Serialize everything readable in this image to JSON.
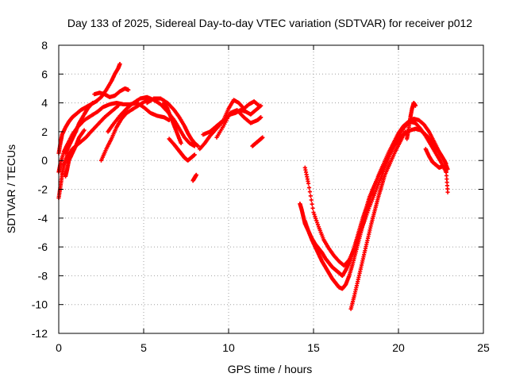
{
  "chart_data": {
    "type": "scatter",
    "title": "Day 133 of 2025, Sidereal Day-to-day VTEC variation (SDTVAR) for receiver p012",
    "xlabel": "GPS time / hours",
    "ylabel": "SDTVAR / TECUs",
    "xlim": [
      0,
      25
    ],
    "ylim": [
      -12,
      8
    ],
    "x_ticks": [
      "0",
      "5",
      "10",
      "15",
      "20",
      "25"
    ],
    "y_ticks": [
      "8",
      "6",
      "4",
      "2",
      "0",
      "-2",
      "-4",
      "-6",
      "-8",
      "-10",
      "-12"
    ],
    "grid": true,
    "marker": "+",
    "series_color": "#ff0000",
    "series": [
      {
        "x": [
          0.0,
          0.1,
          0.2,
          0.4,
          0.6,
          0.8,
          1.0,
          1.3,
          1.6,
          1.9,
          2.2,
          2.5,
          2.8,
          3.1,
          3.3,
          3.5,
          3.6
        ],
        "y": [
          0.5,
          1.2,
          1.8,
          2.3,
          2.7,
          3.0,
          3.2,
          3.5,
          3.7,
          3.9,
          4.1,
          4.4,
          4.9,
          5.5,
          6.0,
          6.4,
          6.7
        ]
      },
      {
        "x": [
          0.0,
          0.1,
          0.3,
          0.5,
          0.8,
          1.1,
          1.5,
          1.9,
          2.3,
          2.6,
          3.0,
          3.4,
          3.8,
          4.2,
          4.6,
          5.0,
          5.4,
          5.8,
          6.2,
          6.5
        ],
        "y": [
          -0.8,
          -0.2,
          0.6,
          1.1,
          1.8,
          2.3,
          2.8,
          3.1,
          3.4,
          3.7,
          3.9,
          4.0,
          3.9,
          3.9,
          4.0,
          3.7,
          3.3,
          3.1,
          3.0,
          2.8
        ]
      },
      {
        "x": [
          0.0,
          0.1,
          0.2,
          0.3,
          0.5,
          0.8,
          1.2,
          1.6,
          1.9,
          2.3,
          2.7,
          3.1,
          3.5
        ],
        "y": [
          -2.6,
          -1.8,
          -1.0,
          -0.3,
          0.3,
          0.8,
          1.2,
          1.6,
          2.0,
          2.5,
          3.0,
          3.4,
          3.8
        ]
      },
      {
        "x": [
          0.4,
          0.5,
          0.6,
          0.8,
          1.0,
          1.2,
          1.5
        ],
        "y": [
          -1.1,
          -0.6,
          0.0,
          0.5,
          1.0,
          1.6,
          2.1
        ]
      },
      {
        "x": [
          0.4,
          0.6,
          0.8,
          1.0,
          1.2,
          1.5,
          1.7,
          2.0
        ],
        "y": [
          0.5,
          1.0,
          1.5,
          2.0,
          2.6,
          3.2,
          3.6,
          4.0
        ]
      },
      {
        "x": [
          2.1,
          2.4,
          2.7,
          3.0,
          3.3,
          3.6,
          3.9,
          4.1
        ],
        "y": [
          4.6,
          4.7,
          4.6,
          4.4,
          4.5,
          4.8,
          5.0,
          4.9
        ]
      },
      {
        "x": [
          2.5,
          2.8,
          3.1,
          3.4,
          3.7,
          4.0,
          4.4,
          4.8,
          5.2
        ],
        "y": [
          0.0,
          0.8,
          1.5,
          2.3,
          2.9,
          3.3,
          3.6,
          3.9,
          4.2
        ]
      },
      {
        "x": [
          2.9,
          3.2,
          3.6,
          4.0,
          4.4,
          4.8,
          5.2,
          5.6,
          6.0,
          6.4,
          6.8,
          7.1,
          7.4,
          7.7,
          8.0
        ],
        "y": [
          2.0,
          2.5,
          3.1,
          3.6,
          4.0,
          4.3,
          4.4,
          4.2,
          3.9,
          3.4,
          2.8,
          2.2,
          1.6,
          1.2,
          1.0
        ]
      },
      {
        "x": [
          5.2,
          5.6,
          6.0,
          6.4,
          6.8,
          7.1,
          7.4,
          7.6,
          7.8,
          8.0,
          8.2
        ],
        "y": [
          4.0,
          4.3,
          4.3,
          4.0,
          3.5,
          3.0,
          2.4,
          1.9,
          1.5,
          1.2,
          1.0
        ]
      },
      {
        "x": [
          6.5,
          6.8,
          7.0,
          7.2,
          7.4,
          7.6,
          7.8,
          8.0
        ],
        "y": [
          1.5,
          1.1,
          0.8,
          0.5,
          0.2,
          0.0,
          0.2,
          0.4
        ]
      },
      {
        "x": [
          6.2,
          6.4,
          6.6,
          6.8,
          7.0,
          7.2
        ],
        "y": [
          4.0,
          3.6,
          3.0,
          2.4,
          1.8,
          1.2
        ]
      },
      {
        "x": [
          7.9,
          8.0,
          8.1
        ],
        "y": [
          -1.4,
          -1.2,
          -1.0
        ]
      },
      {
        "x": [
          8.3,
          8.6,
          8.9,
          9.2,
          9.5,
          9.8,
          10.1,
          10.4,
          10.7,
          11.0,
          11.3,
          11.6,
          11.9
        ],
        "y": [
          0.8,
          1.2,
          1.7,
          2.1,
          2.5,
          2.9,
          3.2,
          3.3,
          3.5,
          3.4,
          3.2,
          3.5,
          3.8
        ]
      },
      {
        "x": [
          8.5,
          8.9,
          9.3,
          9.7,
          10.0,
          10.3,
          10.6,
          10.9,
          11.2,
          11.5,
          11.8
        ],
        "y": [
          1.8,
          2.0,
          2.4,
          2.8,
          3.6,
          4.2,
          4.0,
          3.6,
          3.9,
          4.1,
          3.8
        ]
      },
      {
        "x": [
          9.3,
          9.7,
          10.1,
          10.5,
          10.9,
          11.3,
          11.7,
          11.9
        ],
        "y": [
          1.6,
          2.4,
          3.3,
          3.5,
          3.0,
          2.6,
          2.8,
          3.0
        ]
      },
      {
        "x": [
          11.4,
          11.6,
          11.8,
          12.0
        ],
        "y": [
          1.0,
          1.2,
          1.4,
          1.6
        ]
      },
      {
        "x": [
          14.2,
          14.3,
          14.4,
          14.5,
          14.7,
          14.9,
          15.1,
          15.3,
          15.5,
          15.7,
          15.9,
          16.1,
          16.3,
          16.5,
          16.7,
          16.9,
          17.1,
          17.3,
          17.5,
          17.7,
          17.9,
          18.1,
          18.3,
          18.6,
          18.9,
          19.2,
          19.5,
          19.8,
          20.1,
          20.4,
          20.7,
          21.0,
          21.3,
          21.6,
          21.9,
          22.2,
          22.5,
          22.8
        ],
        "y": [
          -3.0,
          -3.4,
          -3.9,
          -4.4,
          -4.9,
          -5.4,
          -5.8,
          -6.1,
          -6.4,
          -6.8,
          -7.1,
          -7.4,
          -7.6,
          -7.8,
          -8.0,
          -7.6,
          -7.1,
          -6.4,
          -5.6,
          -4.8,
          -4.0,
          -3.3,
          -2.5,
          -1.7,
          -0.9,
          -0.2,
          0.5,
          1.1,
          1.6,
          1.9,
          2.1,
          2.2,
          2.1,
          1.8,
          1.4,
          0.9,
          0.4,
          -0.2
        ]
      },
      {
        "x": [
          14.5,
          14.7,
          14.9,
          15.1,
          15.3,
          15.5,
          15.7,
          15.9,
          16.1,
          16.3,
          16.5,
          16.7,
          16.9,
          17.1,
          17.3,
          17.5,
          17.7,
          17.9,
          18.1,
          18.3,
          18.5,
          18.8,
          19.1,
          19.4,
          19.7,
          20.0,
          20.3,
          20.6,
          20.9,
          21.2,
          21.5,
          21.8,
          22.1,
          22.4,
          22.7,
          22.9
        ],
        "y": [
          -4.2,
          -4.9,
          -5.5,
          -6.0,
          -6.5,
          -7.0,
          -7.4,
          -7.8,
          -8.2,
          -8.5,
          -8.8,
          -8.9,
          -8.6,
          -8.0,
          -7.2,
          -6.3,
          -5.4,
          -4.5,
          -3.6,
          -2.8,
          -2.0,
          -1.1,
          -0.3,
          0.5,
          1.2,
          1.9,
          2.4,
          2.7,
          2.9,
          2.8,
          2.5,
          2.0,
          1.3,
          0.6,
          0.0,
          -0.6
        ]
      },
      {
        "x": [
          14.5,
          14.7,
          15.0,
          15.3,
          15.6,
          15.9,
          16.2,
          16.5,
          16.8,
          17.1,
          17.4,
          17.7,
          18.0,
          18.3,
          18.6,
          18.9,
          19.2,
          19.5,
          19.8,
          20.1,
          20.4,
          20.7,
          21.0,
          21.3,
          21.6,
          21.9,
          22.2,
          22.5,
          22.8
        ],
        "y": [
          -0.5,
          -1.6,
          -3.6,
          -4.6,
          -5.5,
          -6.1,
          -6.6,
          -7.0,
          -7.3,
          -6.9,
          -6.1,
          -5.1,
          -4.2,
          -3.2,
          -2.3,
          -1.4,
          -0.5,
          0.4,
          1.2,
          1.9,
          2.4,
          2.7,
          2.6,
          2.2,
          1.7,
          1.1,
          0.5,
          -0.1,
          -0.8
        ]
      },
      {
        "x": [
          17.2,
          17.4,
          17.6,
          17.8,
          18.0,
          18.2,
          18.4,
          18.6,
          18.8,
          19.0,
          19.2,
          19.5,
          19.8,
          20.1,
          20.4
        ],
        "y": [
          -10.3,
          -9.4,
          -8.4,
          -7.4,
          -6.4,
          -5.4,
          -4.4,
          -3.5,
          -2.6,
          -1.8,
          -1.0,
          -0.2,
          0.6,
          1.3,
          2.0
        ]
      },
      {
        "x": [
          20.5,
          20.6,
          20.7,
          20.8,
          20.9,
          21.0
        ],
        "y": [
          1.5,
          2.2,
          3.0,
          3.6,
          4.0,
          3.8
        ]
      },
      {
        "x": [
          21.6,
          21.8,
          22.0,
          22.2,
          22.4,
          22.6,
          22.8,
          22.9
        ],
        "y": [
          0.8,
          0.3,
          -0.1,
          -0.3,
          -0.5,
          -0.4,
          -0.6,
          -2.2
        ]
      }
    ]
  }
}
